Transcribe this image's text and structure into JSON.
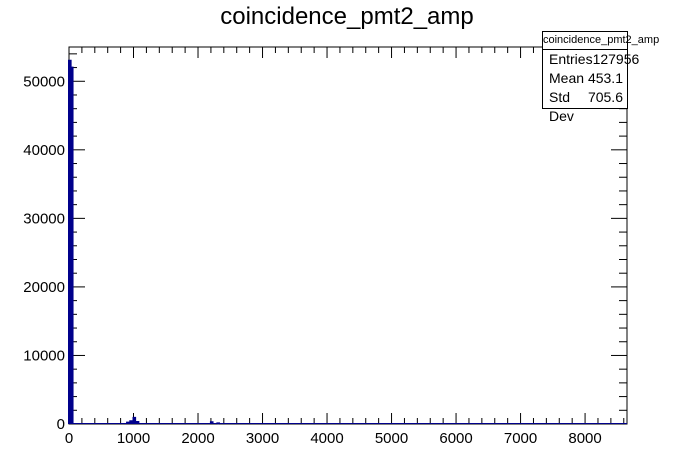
{
  "chart_data": {
    "type": "histogram",
    "title": "coincidence_pmt2_amp",
    "xlabel": "",
    "ylabel": "",
    "xlim": [
      0,
      8650
    ],
    "ylim": [
      0,
      55000
    ],
    "x_ticks": [
      0,
      1000,
      2000,
      3000,
      4000,
      5000,
      6000,
      7000,
      8000
    ],
    "y_ticks": [
      0,
      10000,
      20000,
      30000,
      40000,
      50000
    ],
    "line_color": "#00008b",
    "bins": [
      {
        "x": 0,
        "y": 53000
      },
      {
        "x": 30,
        "y": 52000
      },
      {
        "x": 900,
        "y": 200
      },
      {
        "x": 950,
        "y": 400
      },
      {
        "x": 1000,
        "y": 900
      },
      {
        "x": 1050,
        "y": 300
      },
      {
        "x": 2200,
        "y": 250
      },
      {
        "x": 2300,
        "y": 100
      }
    ],
    "stats": {
      "name": "coincidence_pmt2_amp",
      "rows": [
        {
          "label": "Entries",
          "value": "127956"
        },
        {
          "label": "Mean",
          "value": "453.1"
        },
        {
          "label": "Std Dev",
          "value": "705.6"
        }
      ]
    }
  }
}
